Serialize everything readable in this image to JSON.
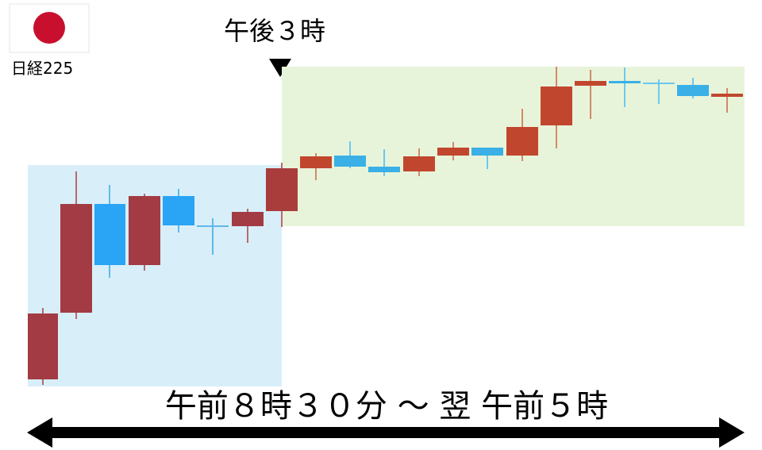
{
  "flag_label": "日経225",
  "marker_label": "午後３時",
  "range_label": "午前８時３０分 ～ 翌 午前５時"
}
